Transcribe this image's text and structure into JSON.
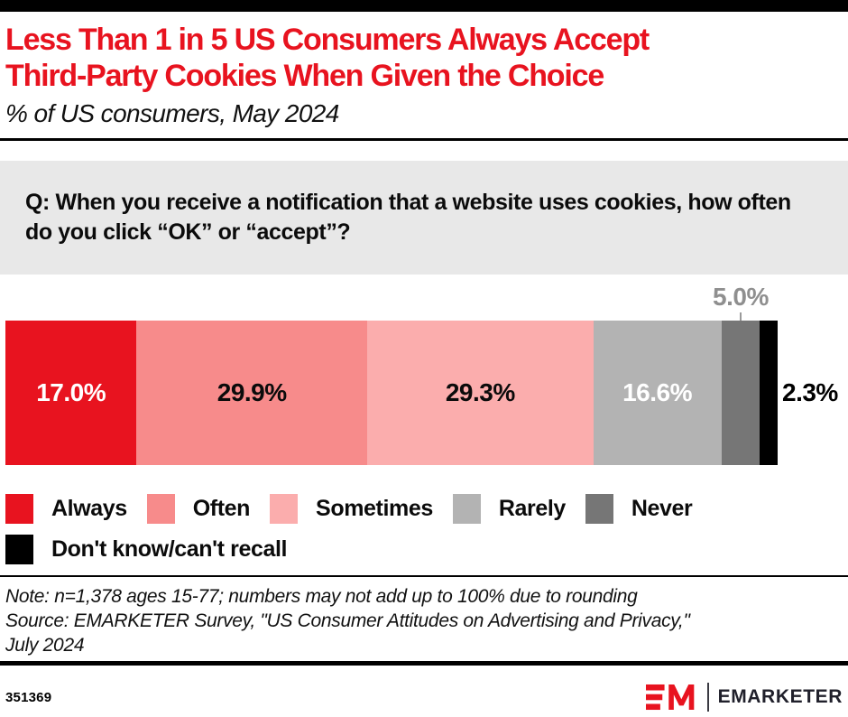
{
  "header": {
    "title_line1": "Less Than 1 in 5 US Consumers Always Accept",
    "title_line2": "Third-Party Cookies When Given the Choice",
    "subtitle": "% of US consumers, May 2024"
  },
  "question": "Q: When you receive a notification that a website uses cookies, how often do you click “OK” or “accept”?",
  "chart_data": {
    "type": "bar",
    "orientation": "horizontal-stacked",
    "categories": [
      "Always",
      "Often",
      "Sometimes",
      "Rarely",
      "Never",
      "Don't know/can't recall"
    ],
    "values": [
      17.0,
      29.9,
      29.3,
      16.6,
      5.0,
      2.3
    ],
    "labels": [
      "17.0%",
      "29.9%",
      "29.3%",
      "16.6%",
      "5.0%",
      "2.3%"
    ],
    "colors": [
      "#e8131f",
      "#f78b8b",
      "#fbadad",
      "#b3b3b3",
      "#767676",
      "#000000"
    ],
    "label_position": [
      "inside",
      "inside",
      "inside",
      "inside",
      "above",
      "right"
    ],
    "label_colors": [
      "#ffffff",
      "#0b0b0b",
      "#0b0b0b",
      "#ffffff",
      "#8f8f8f",
      "#000000"
    ],
    "xlim": [
      0,
      100
    ],
    "grid": false,
    "legend_position": "bottom"
  },
  "legend": {
    "rows": [
      [
        {
          "label": "Always",
          "color": "#e8131f"
        },
        {
          "label": "Often",
          "color": "#f78b8b"
        },
        {
          "label": "Sometimes",
          "color": "#fbadad"
        },
        {
          "label": "Rarely",
          "color": "#b3b3b3"
        },
        {
          "label": "Never",
          "color": "#767676"
        }
      ],
      [
        {
          "label": "Don't know/can't recall",
          "color": "#000000"
        }
      ]
    ]
  },
  "notes": {
    "line1": "Note: n=1,378 ages 15-77; numbers may not add up to 100% due to rounding",
    "line2": "Source: EMARKETER Survey, \"US Consumer Attitudes on Advertising and Privacy,\"",
    "line3": "July 2024"
  },
  "footer": {
    "chart_id": "351369",
    "brand_wordmark": "EMARKETER"
  }
}
